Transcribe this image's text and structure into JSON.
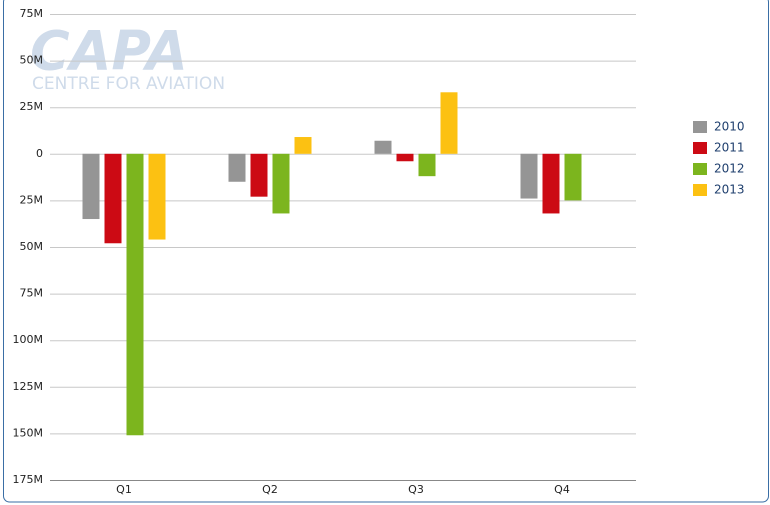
{
  "chart_data": {
    "type": "bar",
    "watermark": {
      "title": "CAPA",
      "subtitle": "CENTRE FOR AVIATION"
    },
    "categories": [
      "Q1",
      "Q2",
      "Q3",
      "Q4"
    ],
    "series": [
      {
        "name": "2010",
        "color": "#959595",
        "values": [
          -35000000,
          -15000000,
          7000000,
          -24000000
        ]
      },
      {
        "name": "2011",
        "color": "#cc0a14",
        "values": [
          -48000000,
          -23000000,
          -4000000,
          -32000000
        ]
      },
      {
        "name": "2012",
        "color": "#7cb51e",
        "values": [
          -151000000,
          -32000000,
          -12000000,
          -25000000
        ]
      },
      {
        "name": "2013",
        "color": "#fcc112",
        "values": [
          -46000000,
          9000000,
          33000000,
          null
        ]
      }
    ],
    "ylim": [
      -175000000,
      75000000
    ],
    "yticks": [
      {
        "value": 75000000,
        "label": "75M"
      },
      {
        "value": 50000000,
        "label": "50M"
      },
      {
        "value": 25000000,
        "label": "25M"
      },
      0,
      {
        "value": -25000000,
        "label": "25M"
      },
      {
        "value": -50000000,
        "label": "50M"
      },
      {
        "value": -75000000,
        "label": "75M"
      },
      {
        "value": -100000000,
        "label": "100M"
      },
      {
        "value": -125000000,
        "label": "125M"
      },
      {
        "value": -150000000,
        "label": "150M"
      },
      {
        "value": -175000000,
        "label": "175M"
      }
    ],
    "grid": true,
    "legend": "right"
  }
}
